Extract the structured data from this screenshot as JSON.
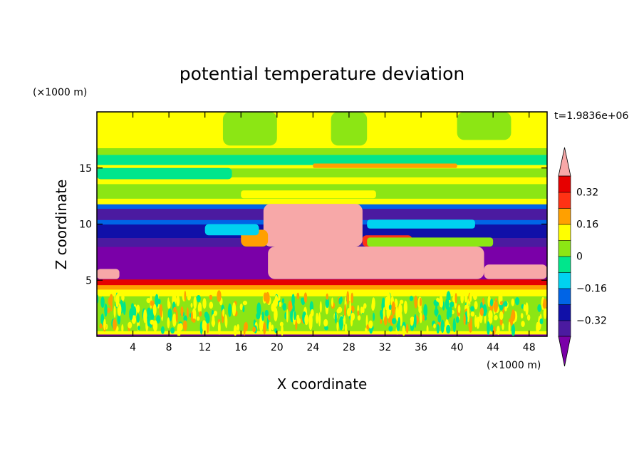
{
  "chart_data": {
    "type": "heatmap",
    "title": "potential temperature deviation",
    "xlabel": "X coordinate",
    "ylabel": "Z coordinate",
    "x_unit": "(×1000 m)",
    "y_unit": "(×1000 m)",
    "time_label": "t=1.9836e+06",
    "xlim": [
      0,
      50
    ],
    "ylim": [
      0,
      20
    ],
    "x_ticks": [
      4,
      8,
      12,
      16,
      20,
      24,
      28,
      32,
      36,
      40,
      44,
      48
    ],
    "y_ticks": [
      5,
      10,
      15
    ],
    "colorbar": {
      "levels": [
        -0.4,
        -0.32,
        -0.24,
        -0.16,
        -0.08,
        0,
        0.08,
        0.16,
        0.24,
        0.32,
        0.4
      ],
      "tick_values": [
        0.32,
        0.16,
        0,
        -0.16,
        -0.32
      ],
      "tick_labels": [
        "0.32",
        "0.16",
        "0",
        "−0.16",
        "−0.32"
      ],
      "colors": [
        "#7a00a8",
        "#4b1aa0",
        "#1010a8",
        "#0064e6",
        "#00d2f0",
        "#00e68c",
        "#8ce614",
        "#ffff00",
        "#ffa000",
        "#ff3214",
        "#e60000",
        "#f7a8a8"
      ],
      "extend": "both"
    },
    "bands": [
      {
        "z": [
          0.0,
          0.2
        ],
        "value": -0.45
      },
      {
        "z": [
          0.2,
          0.5
        ],
        "value": 0.12
      },
      {
        "z": [
          0.5,
          3.6
        ],
        "value": 0.04
      },
      {
        "z": [
          3.6,
          4.2
        ],
        "value": 0.1
      },
      {
        "z": [
          4.2,
          4.6
        ],
        "value": 0.2
      },
      {
        "z": [
          4.6,
          5.1
        ],
        "value": 0.36
      },
      {
        "z": [
          5.1,
          8.0
        ],
        "value": -0.45
      },
      {
        "z": [
          8.0,
          8.8
        ],
        "value": -0.36
      },
      {
        "z": [
          8.8,
          10.0
        ],
        "value": -0.3
      },
      {
        "z": [
          10.0,
          10.4
        ],
        "value": -0.2
      },
      {
        "z": [
          10.4,
          11.4
        ],
        "value": -0.36
      },
      {
        "z": [
          11.4,
          11.8
        ],
        "value": -0.2
      },
      {
        "z": [
          11.8,
          12.3
        ],
        "value": 0.12
      },
      {
        "z": [
          12.3,
          13.0
        ],
        "value": 0.04
      },
      {
        "z": [
          13.0,
          13.6
        ],
        "value": 0.06
      },
      {
        "z": [
          13.6,
          14.2
        ],
        "value": 0.1
      },
      {
        "z": [
          14.2,
          15.0
        ],
        "value": 0.02
      },
      {
        "z": [
          15.0,
          15.3
        ],
        "value": 0.12
      },
      {
        "z": [
          15.3,
          16.2
        ],
        "value": -0.04
      },
      {
        "z": [
          16.2,
          16.8
        ],
        "value": 0.06
      },
      {
        "z": [
          16.8,
          20.0
        ],
        "value": 0.12
      }
    ],
    "anomalies": [
      {
        "x": [
          18.5,
          29.5
        ],
        "z": [
          8.0,
          11.8
        ],
        "value": 0.48
      },
      {
        "x": [
          19.0,
          43.0
        ],
        "z": [
          5.1,
          8.0
        ],
        "value": 0.48
      },
      {
        "x": [
          43.0,
          50.0
        ],
        "z": [
          5.1,
          6.4
        ],
        "value": 0.48
      },
      {
        "x": [
          0.0,
          2.5
        ],
        "z": [
          5.1,
          6.0
        ],
        "value": 0.48
      },
      {
        "x": [
          16.0,
          19.0
        ],
        "z": [
          8.0,
          9.5
        ],
        "value": 0.2
      },
      {
        "x": [
          29.5,
          35.0
        ],
        "z": [
          8.0,
          9.0
        ],
        "value": 0.3
      },
      {
        "x": [
          30.0,
          44.0
        ],
        "z": [
          8.0,
          8.8
        ],
        "value": 0.04
      },
      {
        "x": [
          30.0,
          42.0
        ],
        "z": [
          9.6,
          10.4
        ],
        "value": -0.12
      },
      {
        "x": [
          12.0,
          18.0
        ],
        "z": [
          9.0,
          10.0
        ],
        "value": -0.16
      },
      {
        "x": [
          16.0,
          31.0
        ],
        "z": [
          12.3,
          13.0
        ],
        "value": 0.1
      },
      {
        "x": [
          24.0,
          40.0
        ],
        "z": [
          15.0,
          15.4
        ],
        "value": 0.2
      },
      {
        "x": [
          0.0,
          15.0
        ],
        "z": [
          14.0,
          15.0
        ],
        "value": -0.04
      },
      {
        "x": [
          14.0,
          20.0
        ],
        "z": [
          17.0,
          20.0
        ],
        "value": 0.04
      },
      {
        "x": [
          26.0,
          30.0
        ],
        "z": [
          17.0,
          20.0
        ],
        "value": 0.04
      },
      {
        "x": [
          40.0,
          46.0
        ],
        "z": [
          17.5,
          20.0
        ],
        "value": 0.04
      }
    ]
  }
}
